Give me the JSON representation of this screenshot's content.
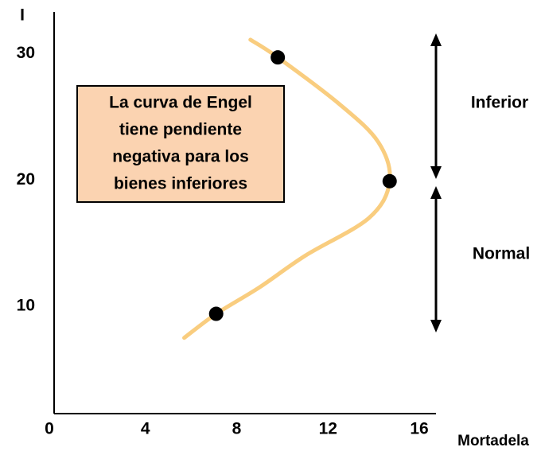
{
  "chart_data": {
    "type": "line",
    "x_label": "Mortadela",
    "y_label": "I",
    "xlim": [
      0,
      16.73
    ],
    "ylim": [
      1.5,
      33.3
    ],
    "xticks": [
      0,
      4,
      8,
      12,
      16
    ],
    "yticks": [
      10,
      20,
      30
    ],
    "series": [
      {
        "color": "#f9cd7f",
        "x": [
          8.6,
          9.8,
          12.5,
          14.2,
          14.7,
          13.8,
          11,
          9,
          7.1,
          5.7
        ],
        "values": [
          31.1,
          29.7,
          26,
          23,
          19.9,
          17,
          14,
          11.5,
          9.4,
          7.5
        ]
      }
    ],
    "points": {
      "color": "#000000",
      "x": [
        9.8,
        14.7,
        7.1
      ],
      "values": [
        29.7,
        19.9,
        9.4
      ]
    },
    "annotation_box": [
      "La curva de Engel",
      "tiene pendiente",
      "negativa para los",
      "bienes inferiores"
    ],
    "range_labels": [
      "Inferior",
      "Normal"
    ]
  }
}
